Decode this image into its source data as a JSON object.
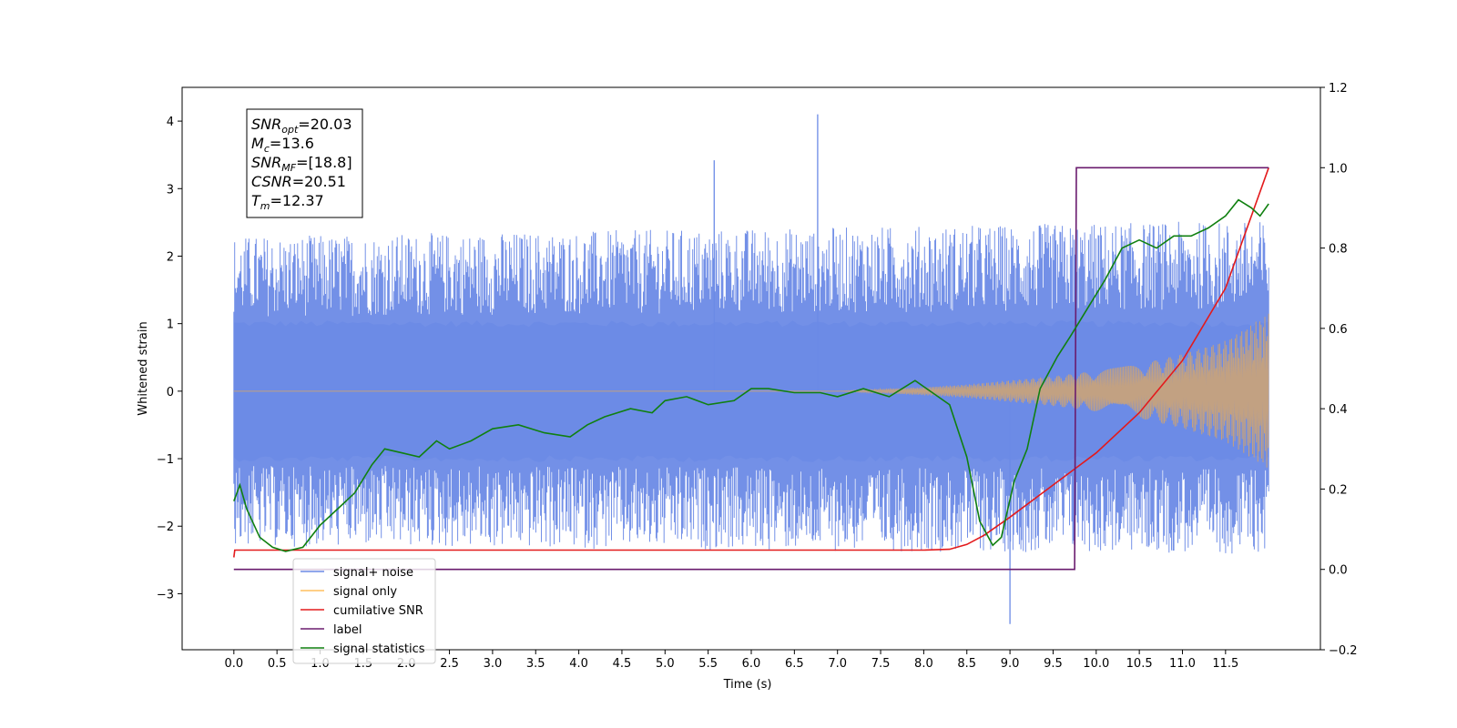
{
  "chart_data": {
    "type": "line",
    "xlabel": "Time (s)",
    "ylabel": "Whitened strain",
    "xlim": [
      -0.6,
      12.6
    ],
    "ylim": [
      -3.83,
      4.5
    ],
    "y2lim": [
      -0.2,
      1.2
    ],
    "x_ticks": [
      0.0,
      0.5,
      1.0,
      1.5,
      2.0,
      2.5,
      3.0,
      3.5,
      4.0,
      4.5,
      5.0,
      5.5,
      6.0,
      6.5,
      7.0,
      7.5,
      8.0,
      8.5,
      9.0,
      9.5,
      10.0,
      10.5,
      11.0,
      11.5
    ],
    "x_tick_labels": [
      "0.0",
      "0.5",
      "1.0",
      "1.5",
      "2.0",
      "2.5",
      "3.0",
      "3.5",
      "4.0",
      "4.5",
      "5.0",
      "5.5",
      "6.0",
      "6.5",
      "7.0",
      "7.5",
      "8.0",
      "8.5",
      "9.0",
      "9.5",
      "10.0",
      "10.5",
      "11.0",
      "11.5"
    ],
    "y_ticks": [
      -3,
      -2,
      -1,
      0,
      1,
      2,
      3,
      4
    ],
    "y_tick_labels": [
      "−3",
      "−2",
      "−1",
      "0",
      "1",
      "2",
      "3",
      "4"
    ],
    "y2_ticks": [
      -0.2,
      0.0,
      0.2,
      0.4,
      0.6,
      0.8,
      1.0,
      1.2
    ],
    "y2_tick_labels": [
      "−0.2",
      "0.0",
      "0.2",
      "0.4",
      "0.6",
      "0.8",
      "1.0",
      "1.2"
    ],
    "grid": false,
    "legend_placement": "lower-left",
    "legend": [
      {
        "label": "signal+ noise",
        "color": "#6b8ae6"
      },
      {
        "label": "signal only",
        "color": "#ffbf5e"
      },
      {
        "label": "cumilative SNR",
        "color": "#e31a1c"
      },
      {
        "label": "label",
        "color": "#6a1b6e"
      },
      {
        "label": "signal statistics",
        "color": "#108010"
      }
    ],
    "annotation": [
      {
        "base": "SNR",
        "sub": "opt",
        "value": "=20.03"
      },
      {
        "base": "M",
        "sub": "c",
        "value": "=13.6"
      },
      {
        "base": "SNR",
        "sub": "MF",
        "value": "=[18.8]"
      },
      {
        "base": "CSNR",
        "sub": "",
        "value": "=20.51"
      },
      {
        "base": "T",
        "sub": "m",
        "value": "=12.37"
      }
    ],
    "series": [
      {
        "name": "signal+ noise",
        "axis": "left",
        "color": "#6b8ae6",
        "description_points": {
          "x": [
            0.0,
            12.0
          ],
          "envelope_upper": [
            2.0,
            2.2
          ],
          "envelope_lower": [
            -2.0,
            -2.1
          ]
        },
        "peaks": [
          {
            "x": 6.77,
            "y": 4.1
          },
          {
            "x": 5.57,
            "y": 3.42
          },
          {
            "x": 9.0,
            "y": -3.45
          }
        ]
      },
      {
        "name": "signal only",
        "axis": "left",
        "color": "#c7a27c",
        "x": [
          0.0,
          7.0,
          8.0,
          8.5,
          9.0,
          9.5,
          10.0,
          10.5,
          11.0,
          11.5,
          12.0
        ],
        "amplitude": [
          0.0,
          0.0,
          0.06,
          0.1,
          0.16,
          0.22,
          0.3,
          0.4,
          0.55,
          0.75,
          1.15
        ]
      },
      {
        "name": "cumilative SNR",
        "axis": "right",
        "color": "#e31a1c",
        "x": [
          0.0,
          0.01,
          8.0,
          8.3,
          8.5,
          8.7,
          9.0,
          9.5,
          10.0,
          10.5,
          11.0,
          11.5,
          12.0
        ],
        "y": [
          0.03,
          0.048,
          0.048,
          0.05,
          0.062,
          0.085,
          0.13,
          0.21,
          0.29,
          0.39,
          0.52,
          0.7,
          1.0
        ]
      },
      {
        "name": "label",
        "axis": "right",
        "color": "#6a1b6e",
        "x": [
          0.0,
          9.75,
          9.77,
          12.0
        ],
        "y": [
          0.0,
          0.0,
          1.0,
          1.0
        ]
      },
      {
        "name": "signal statistics",
        "axis": "right",
        "color": "#108010",
        "x": [
          0.0,
          0.07,
          0.15,
          0.3,
          0.45,
          0.6,
          0.8,
          1.0,
          1.2,
          1.4,
          1.6,
          1.75,
          1.95,
          2.15,
          2.35,
          2.5,
          2.75,
          3.0,
          3.3,
          3.6,
          3.9,
          4.1,
          4.3,
          4.6,
          4.85,
          5.0,
          5.25,
          5.5,
          5.8,
          6.0,
          6.2,
          6.5,
          6.8,
          7.0,
          7.3,
          7.6,
          7.9,
          8.1,
          8.3,
          8.5,
          8.65,
          8.8,
          8.9,
          9.05,
          9.2,
          9.35,
          9.55,
          9.7,
          9.9,
          10.1,
          10.3,
          10.5,
          10.7,
          10.9,
          11.1,
          11.3,
          11.5,
          11.65,
          11.8,
          11.9,
          12.0
        ],
        "y": [
          0.17,
          0.21,
          0.15,
          0.08,
          0.055,
          0.045,
          0.055,
          0.11,
          0.15,
          0.19,
          0.26,
          0.3,
          0.29,
          0.28,
          0.32,
          0.3,
          0.32,
          0.35,
          0.36,
          0.34,
          0.33,
          0.36,
          0.38,
          0.4,
          0.39,
          0.42,
          0.43,
          0.41,
          0.42,
          0.45,
          0.45,
          0.44,
          0.44,
          0.43,
          0.45,
          0.43,
          0.47,
          0.44,
          0.41,
          0.28,
          0.12,
          0.06,
          0.08,
          0.22,
          0.3,
          0.45,
          0.53,
          0.58,
          0.65,
          0.72,
          0.8,
          0.82,
          0.8,
          0.83,
          0.83,
          0.85,
          0.88,
          0.92,
          0.9,
          0.88,
          0.91
        ]
      }
    ]
  }
}
